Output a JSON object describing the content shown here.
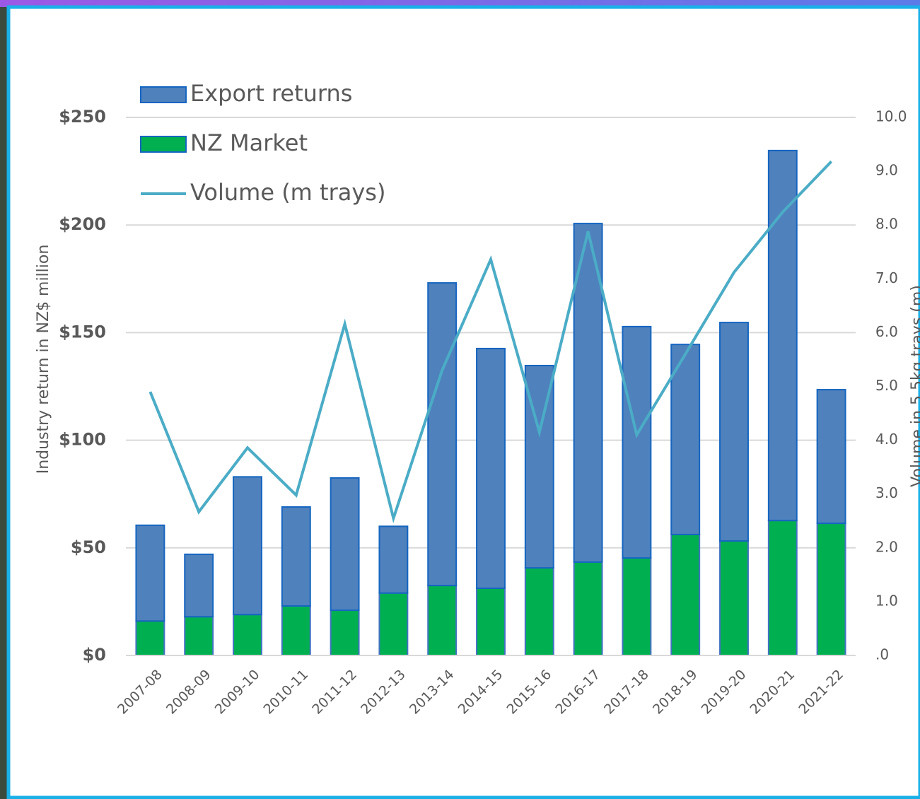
{
  "chart_data": {
    "type": "bar",
    "categories": [
      "2007-08",
      "2008-09",
      "2009-10",
      "2010-11",
      "2011-12",
      "2012-13",
      "2013-14",
      "2014-15",
      "2015-16",
      "2016-17",
      "2017-18",
      "2018-19",
      "2019-20",
      "2020-21",
      "2021-22"
    ],
    "series": [
      {
        "name": "Export returns",
        "color": "#4f81bd",
        "values": [
          44.5,
          29,
          64,
          46,
          61.5,
          31,
          140.6,
          111.4,
          94,
          157.3,
          107.5,
          88.3,
          101.5,
          171.9,
          62.1
        ]
      },
      {
        "name": "NZ Market",
        "color": "#00b050",
        "values": [
          16,
          18,
          19,
          23,
          21,
          29,
          32.5,
          31.2,
          40.7,
          43.4,
          45.3,
          56.2,
          53.2,
          62.7,
          61.4
        ]
      },
      {
        "name": "Volume (m trays)",
        "color": "#4bacc6",
        "axis": "y2",
        "values": [
          4.9,
          2.67,
          3.86,
          2.98,
          6.16,
          2.55,
          5.3,
          7.36,
          4.15,
          7.88,
          4.1,
          5.6,
          7.12,
          8.24,
          9.18
        ]
      }
    ],
    "ylabel": "Industry return in NZ$ million",
    "y2label": "Volume in 5.5kg trays (m)",
    "ylim": [
      0,
      250
    ],
    "yticks": [
      {
        "value": 0,
        "label": "$0"
      },
      {
        "value": 50,
        "label": "$50"
      },
      {
        "value": 100,
        "label": "$100"
      },
      {
        "value": 150,
        "label": "$150"
      },
      {
        "value": 200,
        "label": "$200"
      },
      {
        "value": 250,
        "label": "$250"
      }
    ],
    "y2lim": [
      0,
      10
    ],
    "y2ticks": [
      {
        "value": 0,
        "label": ".0"
      },
      {
        "value": 1,
        "label": "1.0"
      },
      {
        "value": 2,
        "label": "2.0"
      },
      {
        "value": 3,
        "label": "3.0"
      },
      {
        "value": 4,
        "label": "4.0"
      },
      {
        "value": 5,
        "label": "5.0"
      },
      {
        "value": 6,
        "label": "6.0"
      },
      {
        "value": 7,
        "label": "7.0"
      },
      {
        "value": 8,
        "label": "8.0"
      },
      {
        "value": 9,
        "label": "9.0"
      },
      {
        "value": 10,
        "label": "10.0"
      }
    ],
    "grid": true,
    "stacked": true,
    "legend": "top-left"
  }
}
